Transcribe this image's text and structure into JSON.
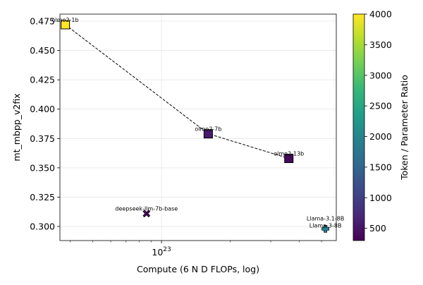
{
  "chart_data": {
    "type": "scatter",
    "xlabel": "Compute (6 N D FLOPs, log)",
    "ylabel": "mt_mbpp_v2fix",
    "xscale": "log",
    "xlim": [
      3.6e+22,
      5.8e+23
    ],
    "ylim": [
      0.288,
      0.481
    ],
    "grid": true,
    "x_ticks": [
      {
        "value": 1e+23,
        "base": "10",
        "exp": "23"
      }
    ],
    "y_ticks": [
      0.3,
      0.325,
      0.35,
      0.375,
      0.4,
      0.425,
      0.45,
      0.475
    ],
    "y_tick_labels": [
      "0.300",
      "0.325",
      "0.350",
      "0.375",
      "0.400",
      "0.425",
      "0.450",
      "0.475"
    ],
    "colorbar": {
      "label": "Token / Parameter Ratio",
      "colormap": "viridis",
      "range": [
        300,
        4000
      ],
      "ticks": [
        500,
        1000,
        1500,
        2000,
        2500,
        3000,
        3500,
        4000
      ],
      "tick_labels": [
        "500",
        "1000",
        "1500",
        "2000",
        "2500",
        "3000",
        "3500",
        "4000"
      ]
    },
    "points": [
      {
        "label": "olmo2-1b",
        "x": 3.8e+22,
        "y": 0.472,
        "ratio": 4000,
        "marker": "square"
      },
      {
        "label": "olmo2-7b",
        "x": 1.6e+23,
        "y": 0.379,
        "ratio": 570,
        "marker": "square"
      },
      {
        "label": "olmo2-13b",
        "x": 3.6e+23,
        "y": 0.358,
        "ratio": 385,
        "marker": "square"
      },
      {
        "label": "deepseek-llm-7b-base",
        "x": 8.6e+22,
        "y": 0.311,
        "ratio": 290,
        "marker": "x"
      },
      {
        "label": "Llama-3.1-8B",
        "x": 5.2e+23,
        "y": 0.298,
        "ratio": 1875,
        "marker": "plus"
      },
      {
        "label": "Llama-3-8B",
        "x": 5.2e+23,
        "y": 0.298,
        "ratio": 1875,
        "marker": "plus"
      }
    ],
    "frontier": [
      "olmo2-1b",
      "olmo2-7b",
      "olmo2-13b"
    ]
  }
}
